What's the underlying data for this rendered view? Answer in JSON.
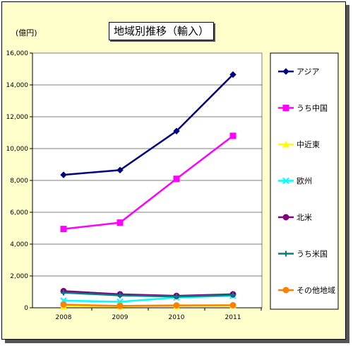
{
  "chart_data": {
    "type": "line",
    "title": "地域別推移（輸入）",
    "ylabel": "(億円)",
    "xlabel": "",
    "ylim": [
      0,
      16000
    ],
    "y_ticks": [
      "0",
      "2,000",
      "4,000",
      "6,000",
      "8,000",
      "10,000",
      "12,000",
      "14,000",
      "16,000"
    ],
    "categories": [
      "2008",
      "2009",
      "2010",
      "2011"
    ],
    "grid": "horizontal",
    "legend": "right",
    "series": [
      {
        "name": "アジア",
        "color": "#000080",
        "marker": "diamond",
        "values": [
          8350,
          8650,
          11100,
          14650
        ]
      },
      {
        "name": "うち中国",
        "color": "#ff00ff",
        "marker": "square",
        "values": [
          4950,
          5350,
          8100,
          10800
        ]
      },
      {
        "name": "中近東",
        "color": "#ffff00",
        "marker": "triangle",
        "values": [
          100,
          80,
          120,
          150
        ]
      },
      {
        "name": "欧州",
        "color": "#00ffff",
        "marker": "cross",
        "values": [
          450,
          380,
          650,
          750
        ]
      },
      {
        "name": "北米",
        "color": "#800080",
        "marker": "circle",
        "values": [
          1050,
          850,
          750,
          850
        ]
      },
      {
        "name": "うち米国",
        "color": "#008080",
        "marker": "plus",
        "values": [
          950,
          780,
          700,
          800
        ]
      },
      {
        "name": "その他地域",
        "color": "#ff8000",
        "marker": "circle",
        "values": [
          200,
          120,
          150,
          160
        ]
      }
    ]
  }
}
